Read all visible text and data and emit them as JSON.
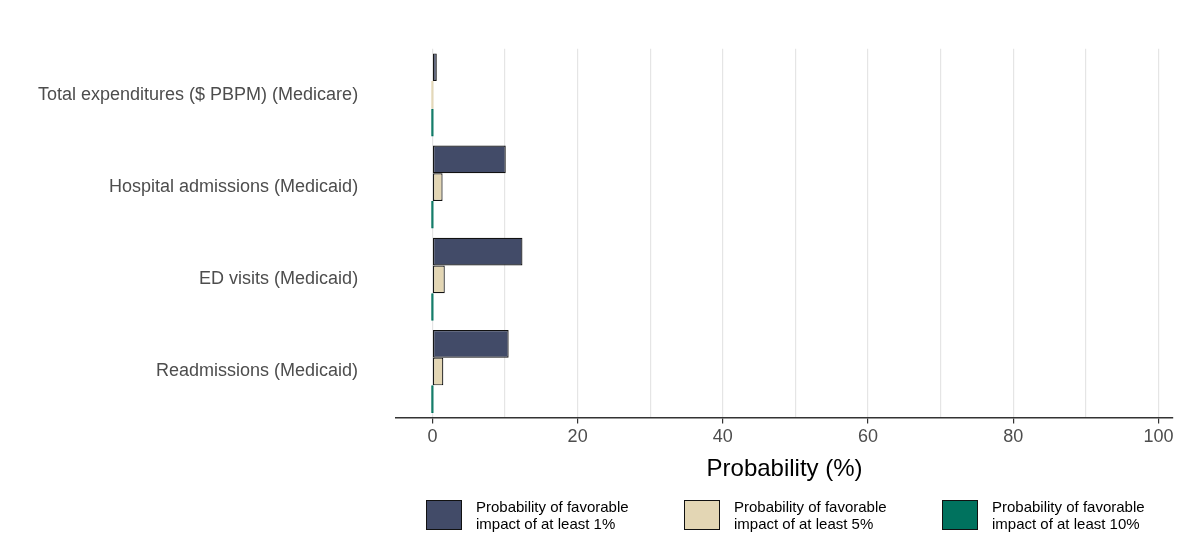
{
  "chart_data": {
    "type": "bar",
    "orientation": "horizontal",
    "categories": [
      "Total expenditures ($ PBPM) (Medicare)",
      "Hospital admissions (Medicaid)",
      "ED visits (Medicaid)",
      "Readmissions (Medicaid)"
    ],
    "series": [
      {
        "name": "Probability of favorable impact of at least 1%",
        "color": "#424b68",
        "values": [
          0.6,
          10.1,
          12.4,
          10.5
        ]
      },
      {
        "name": "Probability of favorable impact of at least 5%",
        "color": "#e3d6b4",
        "values": [
          0,
          1.4,
          1.7,
          1.5
        ]
      },
      {
        "name": "Probability of favorable impact of at least 10%",
        "color": "#00725e",
        "values": [
          0,
          0,
          0,
          0
        ]
      }
    ],
    "xlabel": "Probability (%)",
    "xlim": [
      -5,
      102
    ],
    "xticks": [
      0,
      {
        "value": 10,
        "label": null
      },
      20,
      {
        "value": 30,
        "label": null
      },
      40,
      {
        "value": 50,
        "label": null
      },
      60,
      {
        "value": 70,
        "label": null
      },
      80,
      {
        "value": 90,
        "label": null
      },
      100
    ],
    "grid": "x",
    "legend": "bottom"
  }
}
